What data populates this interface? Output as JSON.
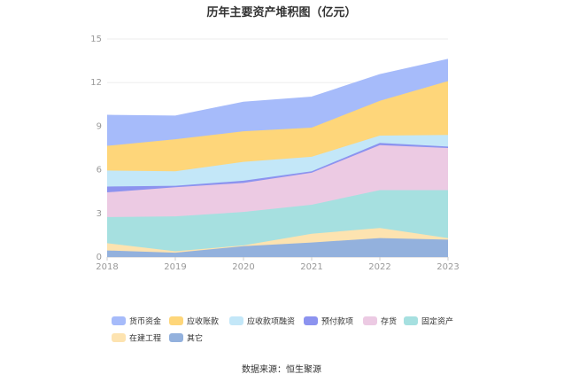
{
  "chart_data": {
    "type": "area",
    "stacked": true,
    "title": "历年主要资产堆积图（亿元）",
    "x": [
      "2018",
      "2019",
      "2020",
      "2021",
      "2022",
      "2023"
    ],
    "ylim": [
      0,
      15
    ],
    "yticks": [
      0,
      3,
      6,
      9,
      12,
      15
    ],
    "grid": true,
    "series": [
      {
        "name": "其它",
        "color": "#93b1dd",
        "values": [
          0.45,
          0.3,
          0.75,
          1.0,
          1.3,
          1.2
        ]
      },
      {
        "name": "在建工程",
        "color": "#fde3b0",
        "values": [
          0.5,
          0.1,
          0.05,
          0.6,
          0.7,
          0.1
        ]
      },
      {
        "name": "固定资产",
        "color": "#a6e0e0",
        "values": [
          1.8,
          2.4,
          2.3,
          2.0,
          2.6,
          3.3
        ]
      },
      {
        "name": "存货",
        "color": "#eccae3",
        "values": [
          1.7,
          2.0,
          2.0,
          2.2,
          3.1,
          2.9
        ]
      },
      {
        "name": "预付款项",
        "color": "#8c93ef",
        "values": [
          0.4,
          0.1,
          0.15,
          0.1,
          0.15,
          0.1
        ]
      },
      {
        "name": "应收款项融资",
        "color": "#c3e7f8",
        "values": [
          1.1,
          1.0,
          1.3,
          1.0,
          0.5,
          0.8
        ]
      },
      {
        "name": "应收账款",
        "color": "#fed67a",
        "values": [
          1.7,
          2.2,
          2.1,
          2.0,
          2.4,
          3.7
        ]
      },
      {
        "name": "货币资金",
        "color": "#a6bbfa",
        "values": [
          2.1,
          1.6,
          2.0,
          2.1,
          1.8,
          1.5
        ]
      }
    ],
    "legend_order": [
      "货币资金",
      "应收账款",
      "应收款项融资",
      "预付款项",
      "存货",
      "固定资产",
      "在建工程",
      "其它"
    ],
    "legend_position": "bottom",
    "source_text": "数据来源：恒生聚源"
  }
}
